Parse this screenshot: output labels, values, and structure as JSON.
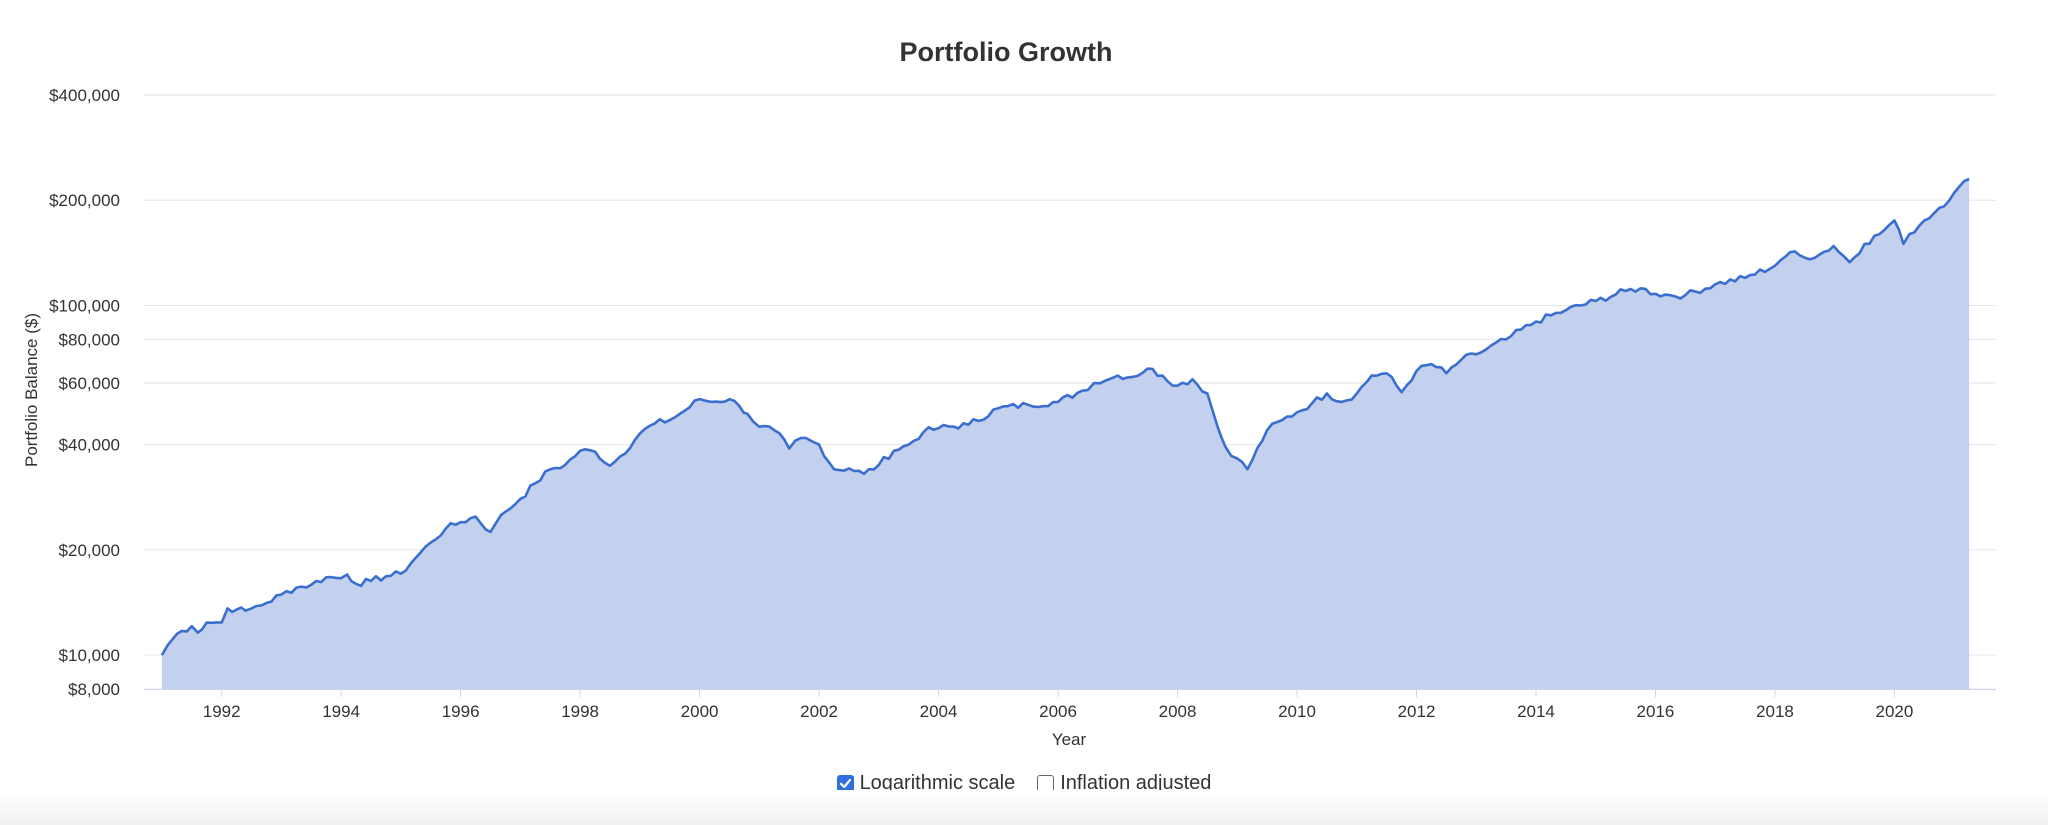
{
  "chart_data": {
    "type": "area",
    "title": "Portfolio Growth",
    "xlabel": "Year",
    "ylabel": "Portfolio Balance ($)",
    "y_scale": "log",
    "ylim": [
      8000,
      400000
    ],
    "xlim": [
      1990.7,
      2021.7
    ],
    "grid": true,
    "y_ticks": [
      {
        "value": 400000,
        "label": "$400,000"
      },
      {
        "value": 200000,
        "label": "$200,000"
      },
      {
        "value": 100000,
        "label": "$100,000"
      },
      {
        "value": 80000,
        "label": "$80,000"
      },
      {
        "value": 60000,
        "label": "$60,000"
      },
      {
        "value": 40000,
        "label": "$40,000"
      },
      {
        "value": 20000,
        "label": "$20,000"
      },
      {
        "value": 10000,
        "label": "$10,000"
      },
      {
        "value": 8000,
        "label": "$8,000"
      }
    ],
    "x_ticks": [
      {
        "value": 1992,
        "label": "1992"
      },
      {
        "value": 1994,
        "label": "1994"
      },
      {
        "value": 1996,
        "label": "1996"
      },
      {
        "value": 1998,
        "label": "1998"
      },
      {
        "value": 2000,
        "label": "2000"
      },
      {
        "value": 2002,
        "label": "2002"
      },
      {
        "value": 2004,
        "label": "2004"
      },
      {
        "value": 2006,
        "label": "2006"
      },
      {
        "value": 2008,
        "label": "2008"
      },
      {
        "value": 2010,
        "label": "2010"
      },
      {
        "value": 2012,
        "label": "2012"
      },
      {
        "value": 2014,
        "label": "2014"
      },
      {
        "value": 2016,
        "label": "2016"
      },
      {
        "value": 2018,
        "label": "2018"
      },
      {
        "value": 2020,
        "label": "2020"
      }
    ],
    "line_color": "#3a6fd0",
    "fill_color": "#c3d1ee",
    "series": [
      {
        "x": [
          1991.0,
          1991.1,
          1991.25,
          1991.5,
          1991.6,
          1991.75,
          1992.0,
          1992.1,
          1992.25,
          1992.4,
          1992.5,
          1992.75,
          1993.0,
          1993.25,
          1993.5,
          1993.75,
          1994.0,
          1994.1,
          1994.25,
          1994.5,
          1994.75,
          1995.0,
          1995.25,
          1995.5,
          1995.75,
          1996.0,
          1996.25,
          1996.5,
          1996.6,
          1996.75,
          1997.0,
          1997.25,
          1997.5,
          1997.75,
          1998.0,
          1998.25,
          1998.5,
          1998.67,
          1999.0,
          1999.25,
          1999.5,
          1999.75,
          2000.0,
          2000.2,
          2000.5,
          2000.67,
          2000.8,
          2001.0,
          2001.25,
          2001.5,
          2001.7,
          2002.0,
          2002.25,
          2002.5,
          2002.75,
          2003.0,
          2003.25,
          2003.5,
          2003.75,
          2004.0,
          2004.5,
          2005.0,
          2005.5,
          2006.0,
          2006.4,
          2006.6,
          2006.8,
          2007.0,
          2007.25,
          2007.5,
          2007.75,
          2008.0,
          2008.25,
          2008.5,
          2008.67,
          2008.8,
          2009.0,
          2009.17,
          2009.5,
          2009.75,
          2010.0,
          2010.25,
          2010.5,
          2010.75,
          2011.0,
          2011.25,
          2011.5,
          2011.75,
          2012.0,
          2012.25,
          2012.5,
          2012.75,
          2013.0,
          2013.5,
          2014.0,
          2014.5,
          2015.0,
          2015.5,
          2015.75,
          2016.0,
          2016.25,
          2016.5,
          2017.0,
          2017.5,
          2018.0,
          2018.1,
          2018.25,
          2018.5,
          2018.75,
          2018.98,
          2019.25,
          2019.5,
          2019.75,
          2020.0,
          2020.15,
          2020.25,
          2020.5,
          2020.75,
          2021.0,
          2021.25
        ],
        "values": [
          10000,
          10700,
          11500,
          12100,
          11600,
          12400,
          12400,
          13600,
          13500,
          13400,
          13600,
          14100,
          14900,
          15600,
          15900,
          16700,
          16600,
          17000,
          16000,
          16300,
          16800,
          17100,
          19000,
          21000,
          23000,
          24000,
          24900,
          22500,
          24000,
          25700,
          28000,
          31000,
          34000,
          35000,
          38400,
          38200,
          34800,
          37000,
          43000,
          46000,
          47000,
          50000,
          54000,
          53000,
          54000,
          51500,
          49000,
          45000,
          44000,
          39000,
          41800,
          40000,
          34000,
          34200,
          33000,
          35000,
          38400,
          40000,
          43500,
          44600,
          45600,
          50800,
          52000,
          53000,
          57000,
          60000,
          61000,
          63000,
          62500,
          66000,
          63000,
          59000,
          61500,
          56000,
          45000,
          39500,
          36500,
          34000,
          44000,
          47000,
          49500,
          52500,
          56000,
          53000,
          56000,
          63000,
          64000,
          56500,
          65000,
          68000,
          64000,
          70000,
          72500,
          80000,
          90000,
          97000,
          103000,
          110000,
          112000,
          108000,
          107000,
          107000,
          115000,
          120000,
          130000,
          135000,
          142000,
          137000,
          140000,
          148000,
          133000,
          150000,
          160000,
          175000,
          150000,
          160000,
          175000,
          190000,
          210000,
          230000
        ],
        "interpolation": "monthly fluctuations between anchor points"
      }
    ]
  },
  "controls": {
    "log_label": "Logarithmic scale",
    "log_checked": true,
    "inflation_label": "Inflation adjusted",
    "inflation_checked": false
  }
}
